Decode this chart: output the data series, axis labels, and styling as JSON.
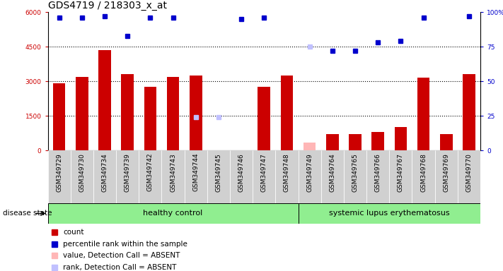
{
  "title": "GDS4719 / 218303_x_at",
  "samples": [
    "GSM349729",
    "GSM349730",
    "GSM349734",
    "GSM349739",
    "GSM349742",
    "GSM349743",
    "GSM349744",
    "GSM349745",
    "GSM349746",
    "GSM349747",
    "GSM349748",
    "GSM349749",
    "GSM349764",
    "GSM349765",
    "GSM349766",
    "GSM349767",
    "GSM349768",
    "GSM349769",
    "GSM349770"
  ],
  "counts": [
    2900,
    3200,
    4350,
    3300,
    2750,
    3200,
    3250,
    0,
    0,
    2750,
    3250,
    0,
    700,
    700,
    800,
    1000,
    3150,
    700,
    3300
  ],
  "absent_bar_indices": [
    11
  ],
  "absent_bar_values": [
    350
  ],
  "percentiles": [
    96,
    96,
    97,
    83,
    96,
    96,
    0,
    0,
    95,
    96,
    0,
    0,
    72,
    72,
    78,
    79,
    96,
    0,
    97
  ],
  "absent_pct_indices": [
    6,
    7
  ],
  "absent_pct_values": [
    24,
    24
  ],
  "absent_rank_indices": [
    11
  ],
  "absent_rank_values": [
    75
  ],
  "healthy_count": 11,
  "ylim_left": [
    0,
    6000
  ],
  "ylim_right": [
    0,
    100
  ],
  "yticks_left": [
    0,
    1500,
    3000,
    4500,
    6000
  ],
  "ytick_labels_left": [
    "0",
    "1500",
    "3000",
    "4500",
    "6000"
  ],
  "yticks_right": [
    0,
    25,
    50,
    75,
    100
  ],
  "ytick_labels_right": [
    "0",
    "25",
    "50",
    "75",
    "100%"
  ],
  "group1_label": "healthy control",
  "group2_label": "systemic lupus erythematosus",
  "disease_state_label": "disease state",
  "legend_items": [
    {
      "label": "count",
      "color": "#cc0000"
    },
    {
      "label": "percentile rank within the sample",
      "color": "#0000cc"
    },
    {
      "label": "value, Detection Call = ABSENT",
      "color": "#ffb6b6"
    },
    {
      "label": "rank, Detection Call = ABSENT",
      "color": "#c0c0ff"
    }
  ],
  "bar_color": "#cc0000",
  "bar_absent_color": "#ffb6b6",
  "dot_color": "#0000cc",
  "dot_absent_color": "#c0c0ff",
  "tick_bg_color": "#d0d0d0",
  "group_bg": "#90ee90",
  "title_fontsize": 10,
  "tick_fontsize": 6.5,
  "legend_fontsize": 7.5
}
